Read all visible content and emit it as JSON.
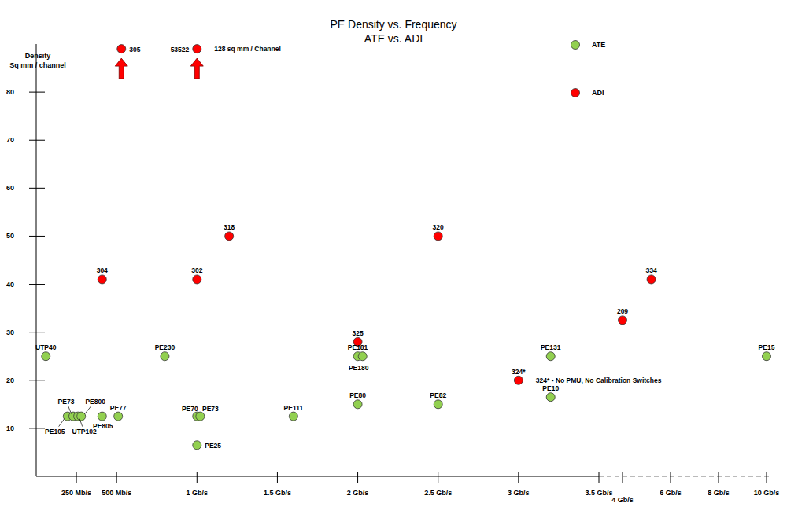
{
  "chart_data": {
    "type": "scatter",
    "title": "PE Density vs. Frequency",
    "subtitle": "ATE vs. ADI",
    "y_label": [
      "Density",
      "Sq mm / channel"
    ],
    "xlim": [
      0,
      10.2
    ],
    "xticks": [
      {
        "value": 0.25,
        "label": "250 Mb/s"
      },
      {
        "value": 0.5,
        "label": "500 Mb/s"
      },
      {
        "value": 1,
        "label": "1 Gb/s"
      },
      {
        "value": 1.5,
        "label": "1.5 Gb/s"
      },
      {
        "value": 2,
        "label": "2 Gb/s"
      },
      {
        "value": 2.5,
        "label": "2.5 Gb/s"
      },
      {
        "value": 3,
        "label": "3 Gb/s"
      },
      {
        "value": 3.5,
        "label": "3.5 Gb/s"
      },
      {
        "value": 4,
        "label": "4 Gb/s"
      },
      {
        "value": 6,
        "label": "6 Gb/s"
      },
      {
        "value": 8,
        "label": "8 Gb/s"
      },
      {
        "value": 10,
        "label": "10 Gb/s"
      }
    ],
    "ylim": [
      0,
      90
    ],
    "yticks": [
      10,
      20,
      30,
      40,
      50,
      60,
      70,
      80
    ],
    "grid": false,
    "legend": "upper right",
    "series": [
      {
        "name": "ATE",
        "color": "#92d050",
        "marker": "circle",
        "x": [
          0.06,
          0.195,
          0.23,
          0.26,
          0.28,
          0.41,
          0.51,
          0.8,
          1.0,
          1.02,
          1.0,
          1.6,
          2.0,
          2.03,
          2.0,
          2.5,
          3.2,
          3.2,
          10
        ],
        "values": [
          25,
          12.5,
          12.5,
          12.5,
          12.5,
          12.5,
          12.5,
          25,
          12.5,
          12.5,
          6.5,
          12.5,
          25,
          25,
          15,
          15,
          25,
          16.5,
          25
        ],
        "labels": [
          "UTP40",
          "PE105",
          "PE73",
          "UTP102",
          "PE800",
          "PE805",
          "PE77",
          "PE230",
          "PE70",
          "PE73",
          "PE25",
          "PE111",
          "PE181",
          "PE180",
          "PE80",
          "PE82",
          "PE131",
          "PE10",
          "PE15"
        ]
      },
      {
        "name": "ADI",
        "color": "#ff0000",
        "marker": "circle",
        "x": [
          0.53,
          1.0,
          0.41,
          1.0,
          1.2,
          2.5,
          2.0,
          3.0,
          4.0,
          5.2
        ],
        "values": [
          89,
          89,
          41,
          41,
          50,
          50,
          28,
          20,
          32.5,
          41
        ],
        "labels": [
          "305",
          "53522",
          "304",
          "302",
          "318",
          "320",
          "325",
          "324*",
          "209",
          "334"
        ]
      }
    ],
    "annotations": [
      {
        "text": "128 sq mm / Channel",
        "x": 1.0,
        "y": 89
      },
      {
        "text": "324* - No PMU, No Calibration Switches",
        "x": 3.0,
        "y": 20
      }
    ]
  }
}
